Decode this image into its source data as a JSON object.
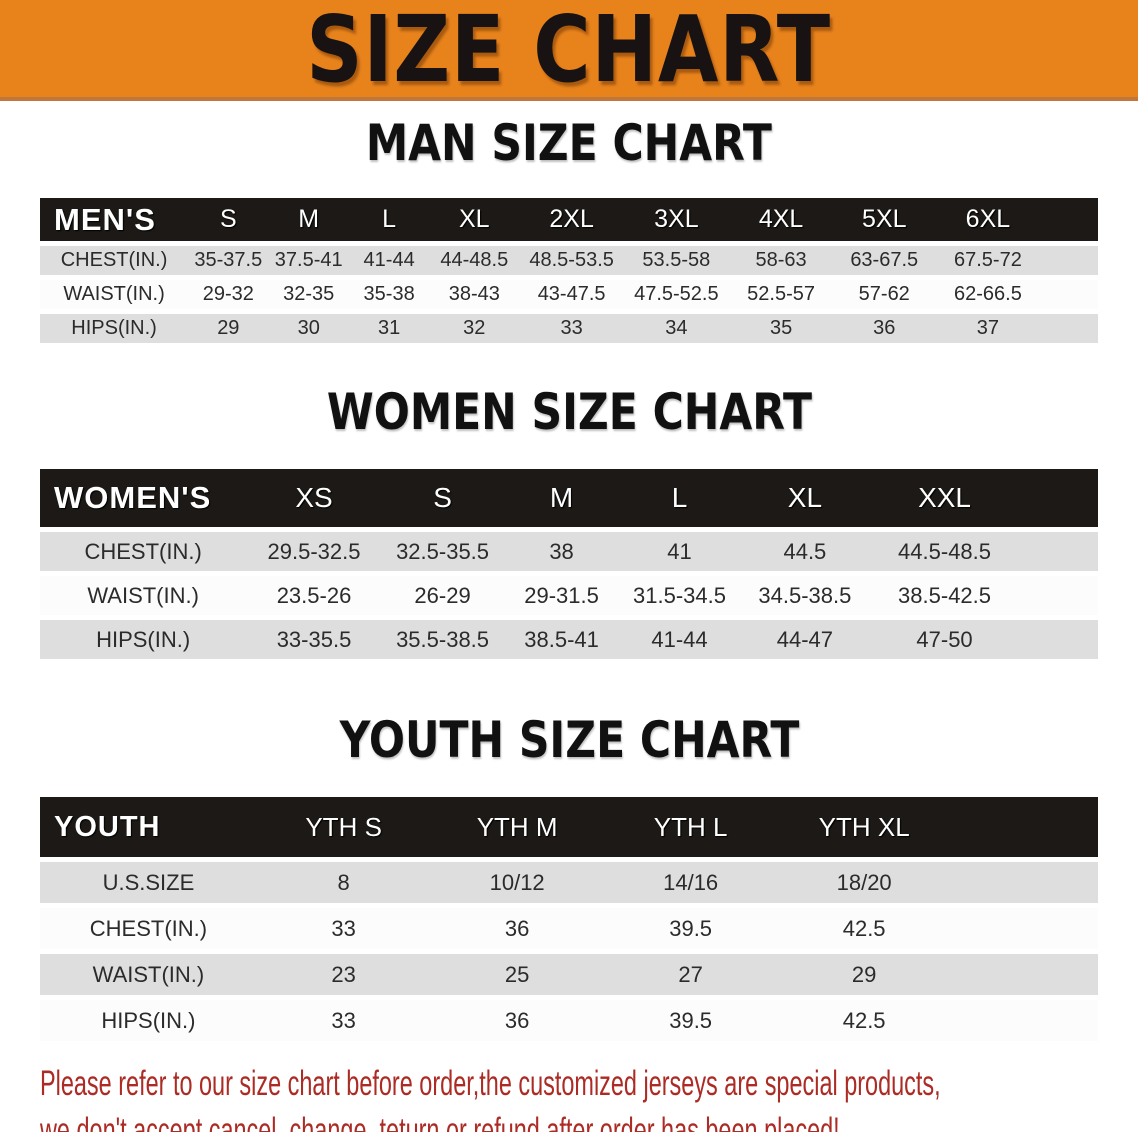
{
  "banner": {
    "title": "SIZE CHART"
  },
  "sections": [
    {
      "heading": "MAN SIZE CHART",
      "table": {
        "label": "MEN'S",
        "columns": [
          "S",
          "M",
          "L",
          "XL",
          "2XL",
          "3XL",
          "4XL",
          "5XL",
          "6XL"
        ],
        "rows": [
          {
            "label": "CHEST(IN.)",
            "values": [
              "35-37.5",
              "37.5-41",
              "41-44",
              "44-48.5",
              "48.5-53.5",
              "53.5-58",
              "58-63",
              "63-67.5",
              "67.5-72"
            ]
          },
          {
            "label": "WAIST(IN.)",
            "values": [
              "29-32",
              "32-35",
              "35-38",
              "38-43",
              "43-47.5",
              "47.5-52.5",
              "52.5-57",
              "57-62",
              "62-66.5"
            ]
          },
          {
            "label": "HIPS(IN.)",
            "values": [
              "29",
              "30",
              "31",
              "32",
              "33",
              "34",
              "35",
              "36",
              "37"
            ]
          }
        ]
      }
    },
    {
      "heading": "WOMEN SIZE CHART",
      "table": {
        "label": "WOMEN'S",
        "columns": [
          "XS",
          "S",
          "M",
          "L",
          "XL",
          "XXL"
        ],
        "rows": [
          {
            "label": "CHEST(IN.)",
            "values": [
              "29.5-32.5",
              "32.5-35.5",
              "38",
              "41",
              "44.5",
              "44.5-48.5"
            ]
          },
          {
            "label": "WAIST(IN.)",
            "values": [
              "23.5-26",
              "26-29",
              "29-31.5",
              "31.5-34.5",
              "34.5-38.5",
              "38.5-42.5"
            ]
          },
          {
            "label": "HIPS(IN.)",
            "values": [
              "33-35.5",
              "35.5-38.5",
              "38.5-41",
              "41-44",
              "44-47",
              "47-50"
            ]
          }
        ]
      }
    },
    {
      "heading": "YOUTH SIZE CHART",
      "table": {
        "label": "YOUTH",
        "columns": [
          "YTH S",
          "YTH M",
          "YTH L",
          "YTH XL"
        ],
        "rows": [
          {
            "label": "U.S.SIZE",
            "values": [
              "8",
              "10/12",
              "14/16",
              "18/20"
            ]
          },
          {
            "label": "CHEST(IN.)",
            "values": [
              "33",
              "36",
              "39.5",
              "42.5"
            ]
          },
          {
            "label": "WAIST(IN.)",
            "values": [
              "23",
              "25",
              "27",
              "29"
            ]
          },
          {
            "label": "HIPS(IN.)",
            "values": [
              "33",
              "36",
              "39.5",
              "42.5"
            ]
          }
        ]
      }
    }
  ],
  "disclaimer": {
    "lines": [
      "Please refer to our size chart before order,the customized jerseys are special products,",
      "we don't accept cancel, change, teturn or refund after order has been placed!"
    ]
  },
  "colors": {
    "banner_orange": "#E8831C",
    "banner_border": "#C1763A",
    "header_black": "#1C1916",
    "row_gray": "#DEDEDE",
    "row_white": "#FCFCFC",
    "disclaimer_red": "#AC2B24"
  }
}
